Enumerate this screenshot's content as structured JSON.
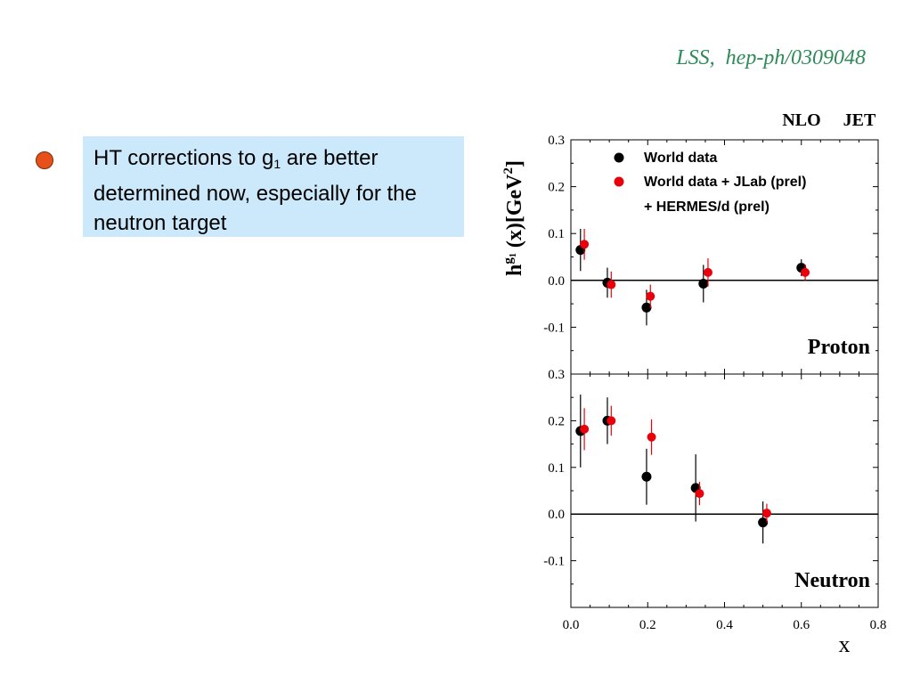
{
  "slide": {
    "citation": "LSS,  hep-ph/0309048",
    "bullet_text": {
      "before": "HT corrections to g",
      "sub": "1",
      "after": " are better determined now, especially for the neutron target"
    },
    "bullet_color": "#e8501a",
    "box_color": "#cce9fb"
  },
  "chart_data": {
    "type": "scatter",
    "header_labels": [
      "NLO",
      "JET"
    ],
    "ylabel_main": "h",
    "ylabel_sup": "g",
    "ylabel_sup_sub": "1",
    "ylabel_rest": " (x)[GeV",
    "ylabel_unit_sup": "2",
    "ylabel_close": "]",
    "xlabel": "x",
    "xlim": [
      0.0,
      0.8
    ],
    "xticks": [
      "0.0",
      "0.2",
      "0.4",
      "0.6",
      "0.8"
    ],
    "colors": {
      "world": "#000000",
      "jlab": "#e8000b"
    },
    "legend": [
      {
        "text": "World data",
        "series": "world"
      },
      {
        "text": "World data + JLab (prel)",
        "series": "jlab"
      },
      {
        "text": "+ HERMES/d (prel)",
        "series": null
      }
    ],
    "legend_placement": "top-center",
    "panels": [
      {
        "name": "Proton",
        "ylim": [
          -0.2,
          0.3
        ],
        "yticks": [
          "0.3",
          "0.2",
          "0.1",
          "0.0",
          "-0.1"
        ],
        "series": [
          {
            "name": "World data",
            "key": "world",
            "points": [
              {
                "x": 0.025,
                "y": 0.065,
                "err": 0.045
              },
              {
                "x": 0.095,
                "y": -0.005,
                "err": 0.032
              },
              {
                "x": 0.197,
                "y": -0.058,
                "err": 0.038
              },
              {
                "x": 0.345,
                "y": -0.007,
                "err": 0.04
              },
              {
                "x": 0.6,
                "y": 0.027,
                "err": 0.018
              }
            ]
          },
          {
            "name": "World data + JLab (prel)",
            "key": "jlab",
            "points": [
              {
                "x": 0.035,
                "y": 0.077,
                "err": 0.033
              },
              {
                "x": 0.105,
                "y": -0.009,
                "err": 0.028
              },
              {
                "x": 0.207,
                "y": -0.034,
                "err": 0.025
              },
              {
                "x": 0.357,
                "y": 0.017,
                "err": 0.03
              },
              {
                "x": 0.61,
                "y": 0.017,
                "err": 0.017
              }
            ]
          }
        ]
      },
      {
        "name": "Neutron",
        "ylim": [
          -0.2,
          0.3
        ],
        "yticks": [
          "0.3",
          "0.2",
          "0.1",
          "0.0",
          "-0.1"
        ],
        "series": [
          {
            "name": "World data",
            "key": "world",
            "points": [
              {
                "x": 0.025,
                "y": 0.178,
                "err": 0.078
              },
              {
                "x": 0.095,
                "y": 0.2,
                "err": 0.05
              },
              {
                "x": 0.197,
                "y": 0.08,
                "err": 0.06
              },
              {
                "x": 0.325,
                "y": 0.056,
                "err": 0.072
              },
              {
                "x": 0.5,
                "y": -0.018,
                "err": 0.045
              }
            ]
          },
          {
            "name": "World data + JLab (prel)",
            "key": "jlab",
            "points": [
              {
                "x": 0.035,
                "y": 0.182,
                "err": 0.045
              },
              {
                "x": 0.105,
                "y": 0.2,
                "err": 0.032
              },
              {
                "x": 0.21,
                "y": 0.165,
                "err": 0.038
              },
              {
                "x": 0.335,
                "y": 0.044,
                "err": 0.025
              },
              {
                "x": 0.51,
                "y": 0.002,
                "err": 0.02
              }
            ]
          }
        ]
      }
    ]
  }
}
